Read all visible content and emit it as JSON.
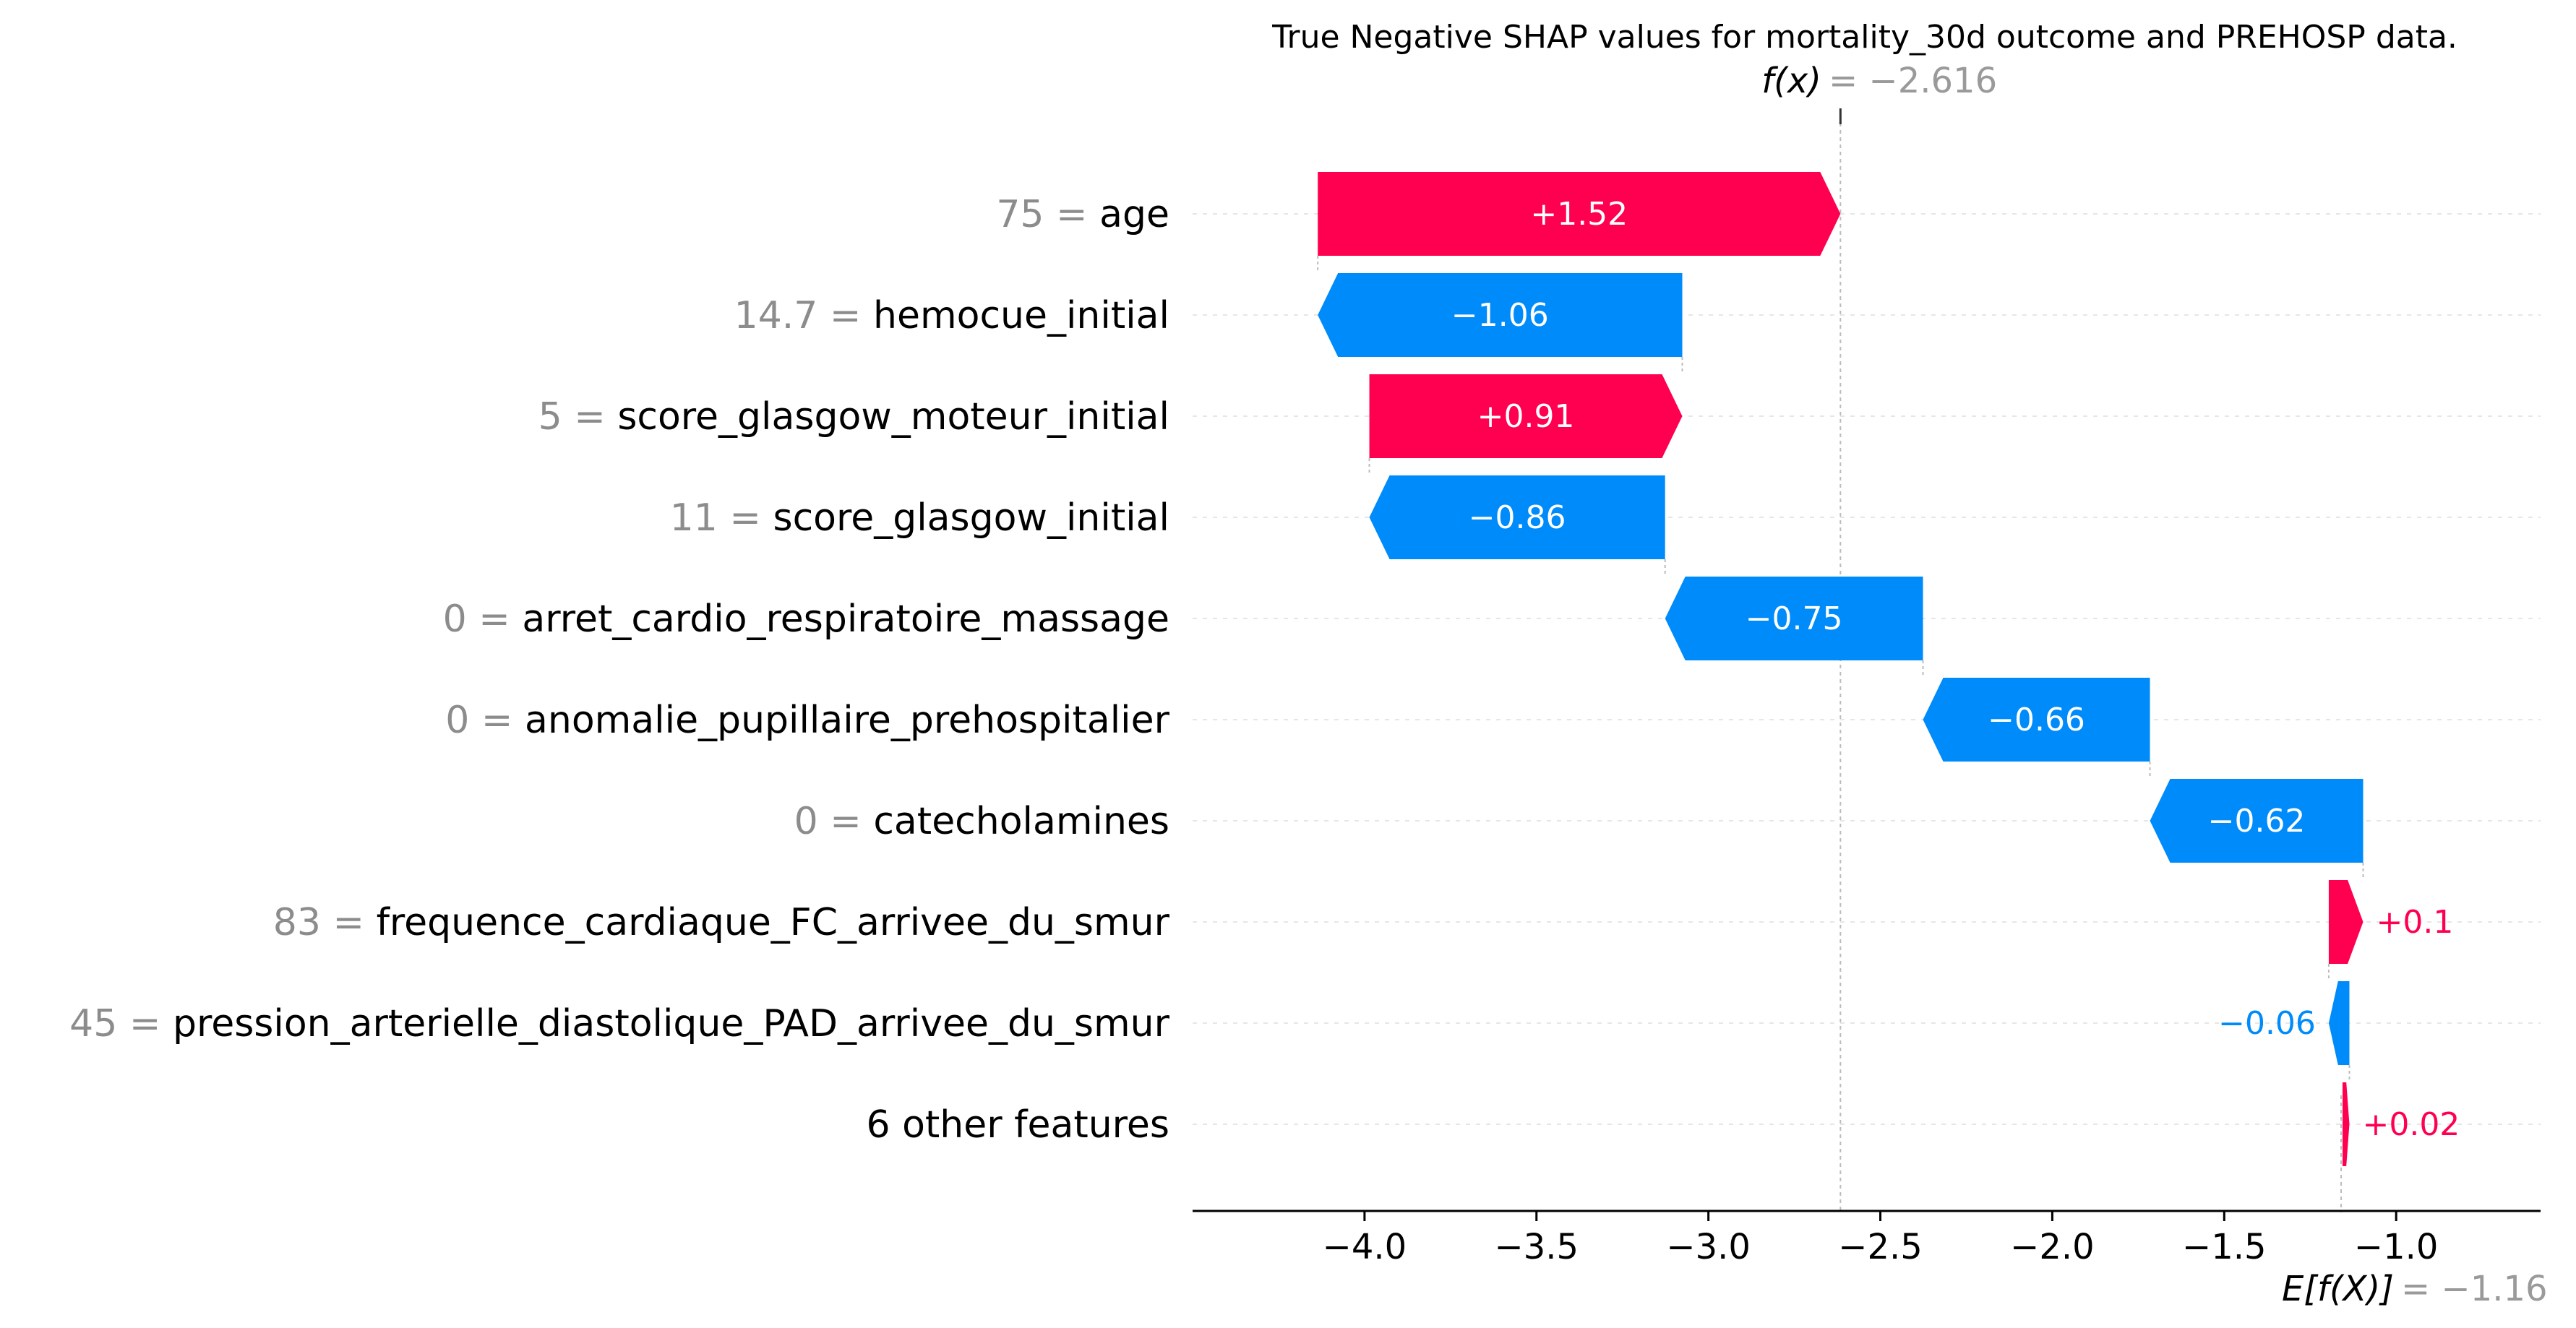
{
  "chart_data": {
    "type": "waterfall",
    "title": "True Negative SHAP values for mortality_30d outcome and PREHOSP data.",
    "fx": {
      "label": "f(x)",
      "value_text": "= −2.616",
      "value": -2.616
    },
    "expected": {
      "label": "E[f(X)]",
      "value_text": "= −1.16",
      "value": -1.16
    },
    "xlim": [
      -4.5,
      -0.58
    ],
    "xticks": [
      -4.0,
      -3.5,
      -3.0,
      -2.5,
      -2.0,
      -1.5,
      -1.0
    ],
    "xtick_labels": [
      "−4.0",
      "−3.5",
      "−3.0",
      "−2.5",
      "−2.0",
      "−1.5",
      "−1.0"
    ],
    "colors": {
      "positive": "#ff0051",
      "negative": "#008bfb",
      "guide": "#bbbbbb",
      "grid": "#e6e6e6",
      "value_text": "#8c8c8c"
    },
    "features": [
      {
        "value": "75",
        "name": "age",
        "shap": 1.52,
        "label": "+1.52",
        "start": -4.136,
        "end": -2.616
      },
      {
        "value": "14.7",
        "name": "hemocue_initial",
        "shap": -1.06,
        "label": "−1.06",
        "start": -3.076,
        "end": -4.136
      },
      {
        "value": "5",
        "name": "score_glasgow_moteur_initial",
        "shap": 0.91,
        "label": "+0.91",
        "start": -3.986,
        "end": -3.076
      },
      {
        "value": "11",
        "name": "score_glasgow_initial",
        "shap": -0.86,
        "label": "−0.86",
        "start": -3.126,
        "end": -3.986
      },
      {
        "value": "0",
        "name": "arret_cardio_respiratoire_massage",
        "shap": -0.75,
        "label": "−0.75",
        "start": -2.376,
        "end": -3.126
      },
      {
        "value": "0",
        "name": "anomalie_pupillaire_prehospitalier",
        "shap": -0.66,
        "label": "−0.66",
        "start": -1.716,
        "end": -2.376
      },
      {
        "value": "0",
        "name": "catecholamines",
        "shap": -0.62,
        "label": "−0.62",
        "start": -1.096,
        "end": -1.716
      },
      {
        "value": "83",
        "name": "frequence_cardiaque_FC_arrivee_du_smur",
        "shap": 0.1,
        "label": "+0.1",
        "start": -1.196,
        "end": -1.096
      },
      {
        "value": "45",
        "name": "pression_arterielle_diastolique_PAD_arrivee_du_smur",
        "shap": -0.06,
        "label": "−0.06",
        "start": -1.136,
        "end": -1.196
      },
      {
        "value": "",
        "name": "6 other features",
        "shap": 0.02,
        "label": "+0.02",
        "start": -1.156,
        "end": -1.136
      }
    ]
  }
}
